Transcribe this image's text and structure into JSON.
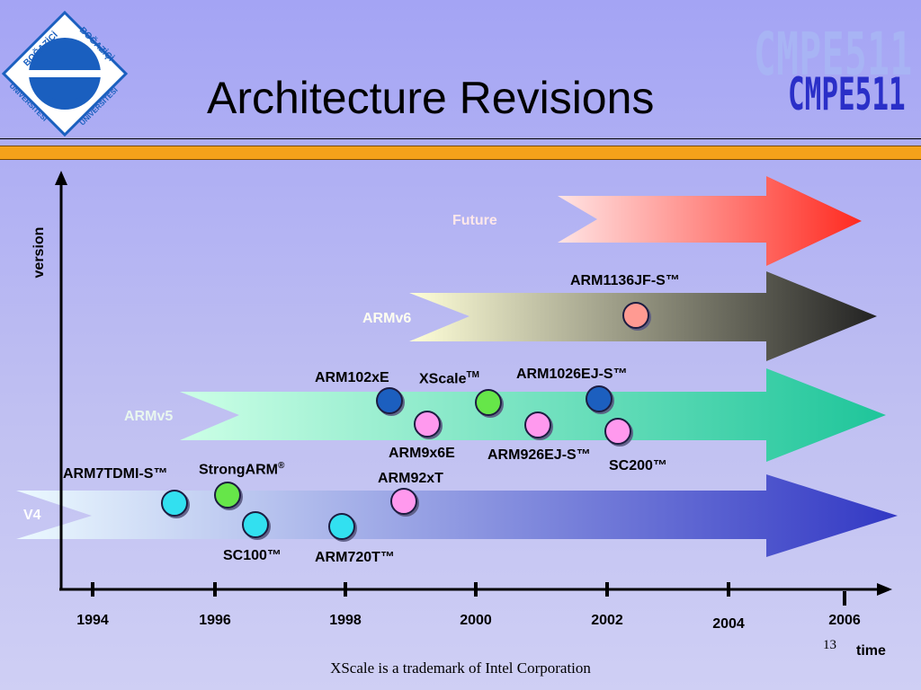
{
  "slide": {
    "title": "Architecture Revisions",
    "page_number": "13",
    "footnote": "XScale is a trademark of Intel Corporation"
  },
  "logo": {
    "top_text": "BOĞAZİÇİ",
    "bottom_text": "ÜNİVERSİTESİ",
    "colors": {
      "primary": "#1a5fbf",
      "background": "#ffffff"
    }
  },
  "course": {
    "code": "CMPE511",
    "colors": {
      "light": "#a8b4f4",
      "dark": "#2a2fc8"
    }
  },
  "axes": {
    "x_label": "time",
    "y_label": "version"
  },
  "years": [
    "1994",
    "1996",
    "1998",
    "2000",
    "2002",
    "2004",
    "2006"
  ],
  "bands": [
    {
      "id": "v4",
      "label": "V4",
      "label_color": "#ffffff",
      "from": "#ecfaff",
      "to": "#3238c4"
    },
    {
      "id": "armv5",
      "label": "ARMv5",
      "label_color": "#e9f7ef",
      "from": "#ccffe6",
      "to": "#1ec59a"
    },
    {
      "id": "armv6",
      "label": "ARMv6",
      "label_color": "#fffff0",
      "from": "#ffffd8",
      "to": "#222222"
    },
    {
      "id": "future",
      "label": "Future",
      "label_color": "#fff1f1",
      "from": "#ffe4e4",
      "to": "#ff2a20"
    }
  ],
  "cores": [
    {
      "id": "arm7tdmi",
      "label": "ARM7TDMI-S™",
      "color": "#32e0f0"
    },
    {
      "id": "strongarm",
      "label": "StrongARM",
      "sup": "®",
      "color": "#66e64a"
    },
    {
      "id": "sc100",
      "label": "SC100™",
      "color": "#32e0f0"
    },
    {
      "id": "arm720t",
      "label": "ARM720T™",
      "color": "#32e0f0"
    },
    {
      "id": "arm92xt",
      "label": "ARM92xT",
      "color": "#ff99ee"
    },
    {
      "id": "arm102xe",
      "label": "ARM102xE",
      "color": "#1e5fbf"
    },
    {
      "id": "xscale",
      "label": "XScale",
      "sup": "TM",
      "color": "#66e64a"
    },
    {
      "id": "arm9x6e",
      "label": "ARM9x6E",
      "color": "#ff99ee"
    },
    {
      "id": "arm926ejs",
      "label": "ARM926EJ-S™",
      "color": "#ff99ee"
    },
    {
      "id": "arm1026ejs",
      "label": "ARM1026EJ-S™",
      "color": "#1e5fbf"
    },
    {
      "id": "sc200",
      "label": "SC200™",
      "color": "#ff99ee"
    },
    {
      "id": "arm1136jfs",
      "label": "ARM1136JF-S™",
      "color": "#ff9a92"
    }
  ]
}
